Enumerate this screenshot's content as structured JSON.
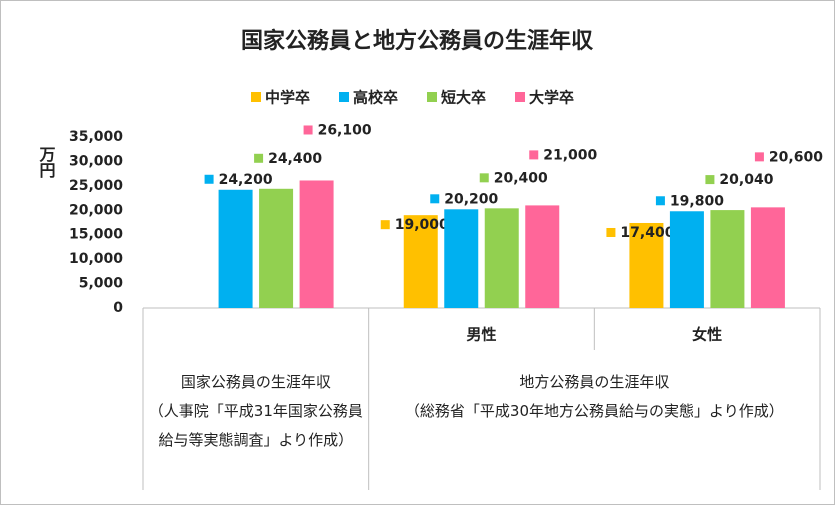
{
  "chart_data": {
    "type": "bar",
    "title": "国家公務員と地方公務員の生涯年収",
    "y_label": "万円",
    "categories": [
      null,
      "男性",
      "女性"
    ],
    "category_groups": [
      "国家公務員の生涯年収\n（人事院「平成31年国家公務員給与等実態調査」より作成）",
      "地方公務員の生涯年収\n（総務省「平成30年地方公務員給与の実態」より作成）"
    ],
    "series": [
      {
        "name": "中学卒",
        "color": "#FFC000",
        "values": [
          null,
          19000,
          17400
        ],
        "value_labels": [
          null,
          "19,000",
          "17,400"
        ]
      },
      {
        "name": "高校卒",
        "color": "#00B0F0",
        "values": [
          24200,
          20200,
          19800
        ],
        "value_labels": [
          "24,200",
          "20,200",
          "19,800"
        ]
      },
      {
        "name": "短大卒",
        "color": "#92D050",
        "values": [
          24400,
          20400,
          20040
        ],
        "value_labels": [
          "24,400",
          "20,400",
          "20,040"
        ]
      },
      {
        "name": "大学卒",
        "color": "#FF6699",
        "values": [
          26100,
          21000,
          20600
        ],
        "value_labels": [
          "26,100",
          "21,000",
          "20,600"
        ]
      }
    ],
    "ylim": [
      0,
      35000
    ],
    "yticks": [
      0,
      {
        "value": 5000,
        "label": "5,000"
      },
      {
        "value": 10000,
        "label": "10,000"
      },
      {
        "value": 15000,
        "label": "15,000"
      },
      {
        "value": 20000,
        "label": "20,000"
      },
      {
        "value": 25000,
        "label": "25,000"
      },
      {
        "value": 30000,
        "label": "30,000"
      },
      {
        "value": 35000,
        "label": "35,000"
      }
    ],
    "grid": false,
    "legend": "top"
  }
}
